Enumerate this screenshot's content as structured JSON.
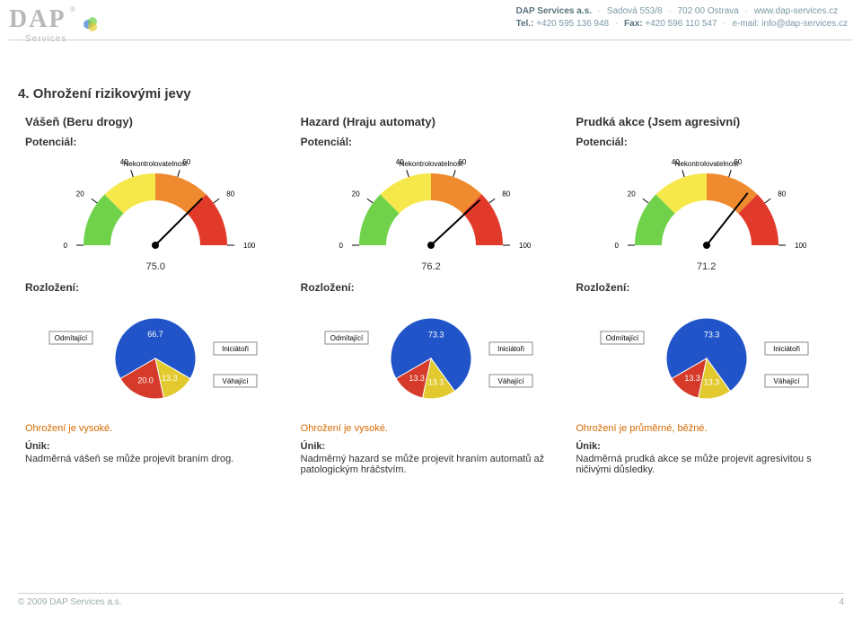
{
  "header": {
    "company": "DAP Services a.s.",
    "address": "Sadová 553/8",
    "addr2": "702 00 Ostrava",
    "web": "www.dap-services.cz",
    "tel_label": "Tel.:",
    "tel": "+420 595 136 948",
    "fax_label": "Fax:",
    "fax": "+420 596 110 547",
    "email_label": "e-mail:",
    "email": "info@dap-services.cz"
  },
  "logo": {
    "name": "DAP",
    "sub": "Services"
  },
  "section": {
    "num": "4.",
    "title": "Ohrožení rizikovými jevy"
  },
  "labels": {
    "potencial": "Potenciál:",
    "rozlozeni": "Rozložení:",
    "nekont": "Nekontrolovatelnost",
    "unik": "Únik:",
    "odmit": "Odmítající",
    "inic": "Iniciátoři",
    "vah": "Váhající"
  },
  "gauge": {
    "ticks": [
      "0",
      "20",
      "40",
      "60",
      "80",
      "100"
    ],
    "arc_colors": [
      "#6fd24a",
      "#f6e84a",
      "#ef8a2e",
      "#e23a2a"
    ],
    "bg": "#ffffff",
    "needle_color": "#000000"
  },
  "pie": {
    "odmit_color": "#2054c8",
    "inic_color": "#e2c92e",
    "vah_color": "#d53a2a"
  },
  "cols": [
    {
      "title": "Vášeň (Beru drogy)",
      "gauge_value": 75.0,
      "gauge_value_text": "75.0",
      "pie": {
        "odmit": 66.7,
        "inic": 13.3,
        "vah": 20.0,
        "odmit_text": "66.7",
        "inic_text": "13.3",
        "vah_text": "20.0"
      },
      "assess": "Ohrožení je vysoké.",
      "unik_text": "Nadměrná vášeň se může projevit braním drog."
    },
    {
      "title": "Hazard (Hraju automaty)",
      "gauge_value": 76.2,
      "gauge_value_text": "76.2",
      "pie": {
        "odmit": 73.3,
        "inic": 13.3,
        "vah": 13.3,
        "odmit_text": "73.3",
        "inic_text": "13.3",
        "vah_text": "13.3"
      },
      "assess": "Ohrožení je vysoké.",
      "unik_text": "Nadměrný hazard se může projevit hraním automatů až patologickým hráčstvím."
    },
    {
      "title": "Prudká akce (Jsem agresivní)",
      "gauge_value": 71.2,
      "gauge_value_text": "71.2",
      "pie": {
        "odmit": 73.3,
        "inic": 13.3,
        "vah": 13.3,
        "odmit_text": "73.3",
        "inic_text": "13.3",
        "vah_text": "13.3"
      },
      "assess": "Ohrožení je průměrné, běžné.",
      "unik_text": "Nadměrná prudká akce se může projevit agresivitou s ničivými důsledky."
    }
  ],
  "footer": {
    "copyright": "© 2009 DAP Services a.s.",
    "page": "4"
  }
}
